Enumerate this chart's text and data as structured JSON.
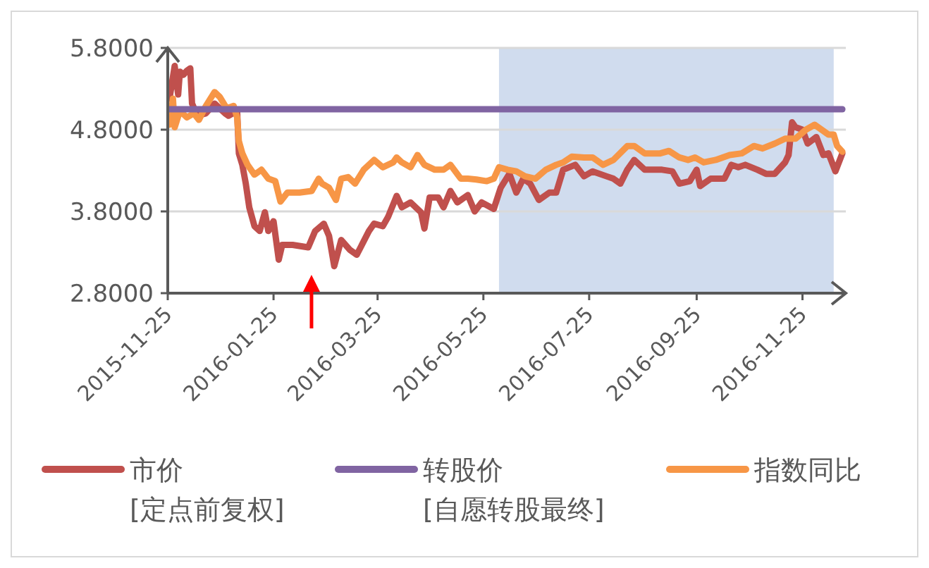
{
  "chart_data": {
    "type": "line",
    "xlim": [
      "2015-11-25",
      "2016-12-20"
    ],
    "ylim": [
      2.8,
      5.8
    ],
    "xticks": [
      "2015-11-25",
      "2016-01-25",
      "2016-03-25",
      "2016-05-25",
      "2016-07-25",
      "2016-09-25",
      "2016-11-25"
    ],
    "yticks": [
      {
        "value": 2.8,
        "label": "2.8000"
      },
      {
        "value": 3.8,
        "label": "3.8000"
      },
      {
        "value": 4.8,
        "label": "4.8000"
      },
      {
        "value": 5.8,
        "label": "5.8000"
      }
    ],
    "grid": "y",
    "legend": "bottom",
    "marker": "none",
    "line_style": "solid",
    "bands": [
      {
        "axis": "x",
        "from": "2016-06-03",
        "to": "2016-12-13",
        "color": "#d0dcee"
      }
    ],
    "series": [
      {
        "name": "市价\n[定点前复权]",
        "color": "#c0504d",
        "x": [
          "2015-11-26",
          "2015-11-29",
          "2015-12-01",
          "2015-12-02",
          "2015-12-04",
          "2015-12-06",
          "2015-12-08",
          "2015-12-09",
          "2015-12-12",
          "2015-12-17",
          "2015-12-22",
          "2015-12-28",
          "2015-12-30",
          "2016-01-04",
          "2016-01-05",
          "2016-01-07",
          "2016-01-09",
          "2016-01-11",
          "2016-01-14",
          "2016-01-17",
          "2016-01-20",
          "2016-01-22",
          "2016-01-25",
          "2016-01-28",
          "2016-01-30",
          "2016-02-05",
          "2016-02-14",
          "2016-02-18",
          "2016-02-23",
          "2016-02-26",
          "2016-02-29",
          "2016-03-04",
          "2016-03-09",
          "2016-03-13",
          "2016-03-20",
          "2016-03-23",
          "2016-03-28",
          "2016-03-31",
          "2016-04-05",
          "2016-04-08",
          "2016-04-13",
          "2016-04-19",
          "2016-04-21",
          "2016-04-24",
          "2016-04-29",
          "2016-05-02",
          "2016-05-06",
          "2016-05-10",
          "2016-05-16",
          "2016-05-20",
          "2016-05-24",
          "2016-05-31",
          "2016-06-04",
          "2016-06-09",
          "2016-06-13",
          "2016-06-17",
          "2016-06-21",
          "2016-06-26",
          "2016-07-02",
          "2016-07-06",
          "2016-07-10",
          "2016-07-17",
          "2016-07-22",
          "2016-07-27",
          "2016-08-04",
          "2016-08-08",
          "2016-08-12",
          "2016-08-16",
          "2016-08-20",
          "2016-08-26",
          "2016-08-31",
          "2016-09-05",
          "2016-09-11",
          "2016-09-15",
          "2016-09-21",
          "2016-09-25",
          "2016-09-27",
          "2016-10-03",
          "2016-10-11",
          "2016-10-15",
          "2016-10-19",
          "2016-10-23",
          "2016-10-30",
          "2016-11-04",
          "2016-11-09",
          "2016-11-15",
          "2016-11-17",
          "2016-11-19",
          "2016-11-21",
          "2016-11-25",
          "2016-11-28",
          "2016-12-03",
          "2016-12-07",
          "2016-12-10",
          "2016-12-14",
          "2016-12-18"
        ],
        "values": [
          5.18,
          5.58,
          5.23,
          5.51,
          5.47,
          5.52,
          5.55,
          5.12,
          4.97,
          5.0,
          5.12,
          5.0,
          4.97,
          5.03,
          4.51,
          4.37,
          4.14,
          3.85,
          3.62,
          3.56,
          3.79,
          3.56,
          3.68,
          3.21,
          3.39,
          3.39,
          3.36,
          3.56,
          3.65,
          3.5,
          3.13,
          3.45,
          3.33,
          3.27,
          3.56,
          3.65,
          3.62,
          3.73,
          3.99,
          3.85,
          3.91,
          3.79,
          3.59,
          3.97,
          3.97,
          3.85,
          4.05,
          3.91,
          4.0,
          3.8,
          3.91,
          3.83,
          4.09,
          4.26,
          4.03,
          4.2,
          4.14,
          3.94,
          4.03,
          4.03,
          4.31,
          4.37,
          4.23,
          4.29,
          4.23,
          4.2,
          4.14,
          4.31,
          4.43,
          4.31,
          4.31,
          4.31,
          4.29,
          4.14,
          4.17,
          4.31,
          4.11,
          4.2,
          4.2,
          4.37,
          4.34,
          4.37,
          4.31,
          4.26,
          4.26,
          4.4,
          4.49,
          4.89,
          4.83,
          4.8,
          4.63,
          4.71,
          4.49,
          4.51,
          4.29,
          4.51
        ]
      },
      {
        "name": "转股价\n[自愿转股最终]",
        "color": "#8064a2",
        "x": [
          "2015-11-26",
          "2016-12-18"
        ],
        "values": [
          5.05,
          5.05
        ]
      },
      {
        "name": "指数同比",
        "color": "#f79646",
        "x": [
          "2015-11-26",
          "2015-11-28",
          "2015-11-29",
          "2015-12-02",
          "2015-12-06",
          "2015-12-10",
          "2015-12-13",
          "2015-12-17",
          "2015-12-22",
          "2015-12-25",
          "2015-12-29",
          "2016-01-02",
          "2016-01-04",
          "2016-01-05",
          "2016-01-07",
          "2016-01-10",
          "2016-01-14",
          "2016-01-18",
          "2016-01-22",
          "2016-01-26",
          "2016-01-29",
          "2016-02-02",
          "2016-02-09",
          "2016-02-16",
          "2016-02-20",
          "2016-02-22",
          "2016-02-26",
          "2016-03-01",
          "2016-03-04",
          "2016-03-08",
          "2016-03-12",
          "2016-03-17",
          "2016-03-23",
          "2016-03-28",
          "2016-04-03",
          "2016-04-05",
          "2016-04-08",
          "2016-04-13",
          "2016-04-17",
          "2016-04-21",
          "2016-04-27",
          "2016-05-02",
          "2016-05-06",
          "2016-05-12",
          "2016-05-16",
          "2016-05-21",
          "2016-05-27",
          "2016-05-31",
          "2016-06-03",
          "2016-06-08",
          "2016-06-13",
          "2016-06-18",
          "2016-06-24",
          "2016-06-30",
          "2016-07-06",
          "2016-07-10",
          "2016-07-15",
          "2016-07-22",
          "2016-07-27",
          "2016-08-02",
          "2016-08-08",
          "2016-08-16",
          "2016-08-20",
          "2016-08-26",
          "2016-09-04",
          "2016-09-09",
          "2016-09-15",
          "2016-09-20",
          "2016-09-24",
          "2016-09-29",
          "2016-10-06",
          "2016-10-14",
          "2016-10-21",
          "2016-10-28",
          "2016-11-02",
          "2016-11-09",
          "2016-11-15",
          "2016-11-21",
          "2016-11-27",
          "2016-12-02",
          "2016-12-06",
          "2016-12-10",
          "2016-12-13",
          "2016-12-15",
          "2016-12-18"
        ],
        "values": [
          4.86,
          5.18,
          4.83,
          5.03,
          4.95,
          5.0,
          4.92,
          5.09,
          5.26,
          5.2,
          5.06,
          5.09,
          4.95,
          4.66,
          4.51,
          4.37,
          4.25,
          4.31,
          4.2,
          4.17,
          3.92,
          4.03,
          4.03,
          4.05,
          4.2,
          4.14,
          4.09,
          3.94,
          4.2,
          4.22,
          4.14,
          4.31,
          4.43,
          4.34,
          4.4,
          4.46,
          4.4,
          4.34,
          4.49,
          4.37,
          4.31,
          4.31,
          4.37,
          4.2,
          4.2,
          4.19,
          4.17,
          4.2,
          4.34,
          4.31,
          4.29,
          4.23,
          4.2,
          4.31,
          4.37,
          4.4,
          4.47,
          4.46,
          4.46,
          4.37,
          4.43,
          4.6,
          4.6,
          4.51,
          4.51,
          4.54,
          4.46,
          4.43,
          4.46,
          4.4,
          4.43,
          4.49,
          4.51,
          4.6,
          4.57,
          4.63,
          4.69,
          4.69,
          4.8,
          4.86,
          4.8,
          4.74,
          4.74,
          4.6,
          4.53
        ]
      }
    ]
  }
}
